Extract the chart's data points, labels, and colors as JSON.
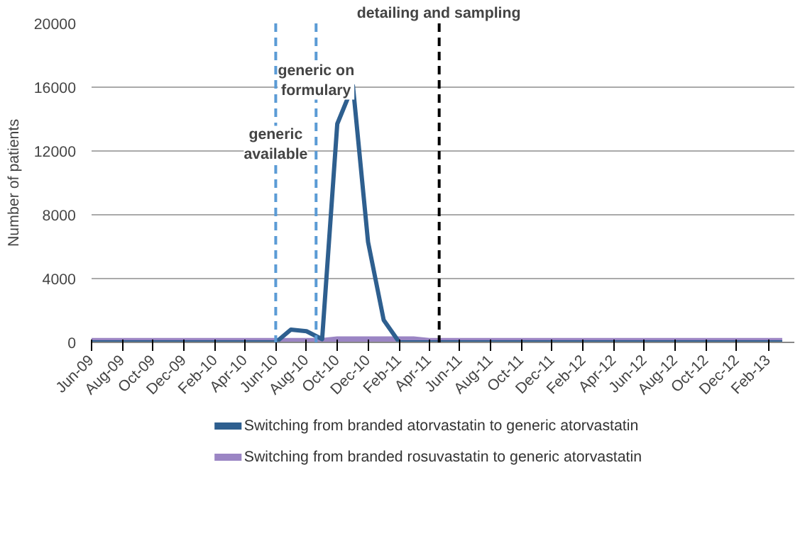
{
  "chart_data": {
    "type": "line",
    "ylabel": "Number of patients",
    "x": [
      "2009-06",
      "2009-07",
      "2009-08",
      "2009-09",
      "2009-10",
      "2009-11",
      "2009-12",
      "2010-01",
      "2010-02",
      "2010-03",
      "2010-04",
      "2010-05",
      "2010-06",
      "2010-07",
      "2010-08",
      "2010-09",
      "2010-10",
      "2010-11",
      "2010-12",
      "2011-01",
      "2011-02",
      "2011-03",
      "2011-04",
      "2011-05",
      "2011-06",
      "2011-07",
      "2011-08",
      "2011-09",
      "2011-10",
      "2011-11",
      "2011-12",
      "2012-01",
      "2012-02",
      "2012-03",
      "2012-04",
      "2012-05",
      "2012-06",
      "2012-07",
      "2012-08",
      "2012-09",
      "2012-10",
      "2012-11",
      "2012-12",
      "2013-01",
      "2013-02",
      "2013-03"
    ],
    "series": [
      {
        "name": "Switching from branded atorvastatin to generic atorvastatin",
        "color": "#2e5f8f",
        "values": [
          0,
          0,
          0,
          0,
          0,
          0,
          0,
          0,
          0,
          0,
          0,
          0,
          0,
          800,
          700,
          200,
          13700,
          16100,
          6300,
          1400,
          0,
          0,
          0,
          0,
          0,
          0,
          0,
          0,
          0,
          0,
          0,
          0,
          0,
          0,
          0,
          0,
          0,
          0,
          0,
          0,
          0,
          0,
          0,
          0,
          0,
          0
        ]
      },
      {
        "name": "Switching from branded rosuvastatin to generic atorvastatin",
        "color": "#9b85c4",
        "values": [
          100,
          100,
          100,
          100,
          100,
          100,
          100,
          100,
          100,
          100,
          100,
          100,
          100,
          100,
          100,
          100,
          200,
          200,
          200,
          200,
          200,
          200,
          100,
          100,
          100,
          100,
          100,
          100,
          100,
          100,
          100,
          100,
          100,
          100,
          100,
          100,
          100,
          100,
          100,
          100,
          100,
          100,
          100,
          100,
          100,
          100
        ]
      }
    ],
    "xlim": [
      "2009-06-01",
      "2013-03-25"
    ],
    "xticks": [
      {
        "value": "2009-06",
        "label": "Jun-09"
      },
      {
        "value": "2009-08",
        "label": "Aug-09"
      },
      {
        "value": "2009-10",
        "label": "Oct-09"
      },
      {
        "value": "2009-12",
        "label": "Dec-09"
      },
      {
        "value": "2010-02",
        "label": "Feb-10"
      },
      {
        "value": "2010-04",
        "label": "Apr-10"
      },
      {
        "value": "2010-06",
        "label": "Jun-10"
      },
      {
        "value": "2010-08",
        "label": "Aug-10"
      },
      {
        "value": "2010-10",
        "label": "Oct-10"
      },
      {
        "value": "2010-12",
        "label": "Dec-10"
      },
      {
        "value": "2011-02",
        "label": "Feb-11"
      },
      {
        "value": "2011-04",
        "label": "Apr-11"
      },
      {
        "value": "2011-06",
        "label": "Jun-11"
      },
      {
        "value": "2011-08",
        "label": "Aug-11"
      },
      {
        "value": "2011-10",
        "label": "Oct-11"
      },
      {
        "value": "2011-12",
        "label": "Dec-11"
      },
      {
        "value": "2012-02",
        "label": "Feb-12"
      },
      {
        "value": "2012-04",
        "label": "Apr-12"
      },
      {
        "value": "2012-06",
        "label": "Jun-12"
      },
      {
        "value": "2012-08",
        "label": "Aug-12"
      },
      {
        "value": "2012-10",
        "label": "Oct-12"
      },
      {
        "value": "2012-12",
        "label": "Dec-12"
      },
      {
        "value": "2013-02",
        "label": "Feb-13"
      }
    ],
    "ylim": [
      0,
      20000
    ],
    "yticks": [
      0,
      4000,
      8000,
      12000,
      16000,
      20000
    ],
    "ref_lines": [
      {
        "axis": "x",
        "value": "2010-06-01",
        "label": "generic\navailable",
        "color": "#5b9bd5",
        "line_style": "dashed"
      },
      {
        "axis": "x",
        "value": "2010-08-20",
        "label": "generic on\nformulary",
        "color": "#5b9bd5",
        "line_style": "dashed"
      },
      {
        "axis": "x",
        "value": "2011-04-21",
        "label": "detailing and sampling",
        "color": "#000000",
        "line_style": "dashed"
      }
    ],
    "grid": "y",
    "legend": "bottom",
    "marker": "none",
    "line_style": "solid"
  }
}
